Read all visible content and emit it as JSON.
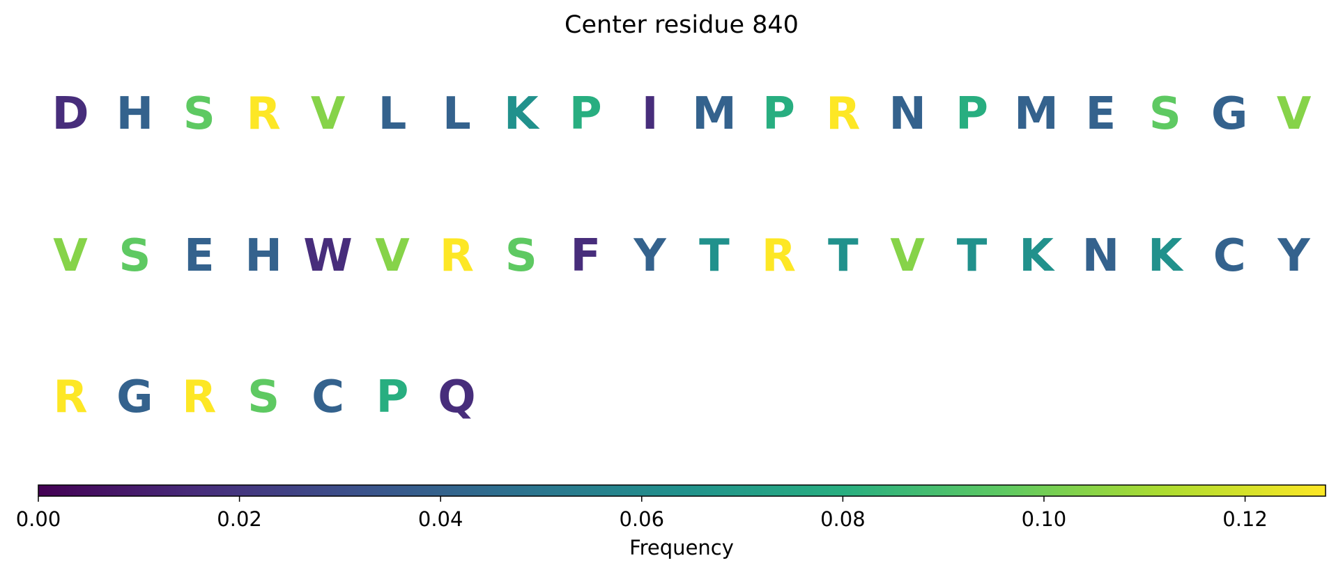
{
  "chart_data": {
    "type": "heatmap",
    "title": "Center residue 840",
    "colormap": "viridis",
    "grid": false,
    "rows": [
      [
        "D",
        "H",
        "S",
        "R",
        "V",
        "L",
        "L",
        "K",
        "P",
        "I",
        "M",
        "P",
        "R",
        "N",
        "P",
        "M",
        "E",
        "S",
        "G",
        "V"
      ],
      [
        "V",
        "S",
        "E",
        "H",
        "W",
        "V",
        "R",
        "S",
        "F",
        "Y",
        "T",
        "R",
        "T",
        "V",
        "T",
        "K",
        "N",
        "K",
        "C",
        "Y"
      ],
      [
        "R",
        "G",
        "R",
        "S",
        "C",
        "P",
        "Q"
      ]
    ],
    "residue_frequency": {
      "R": 0.128,
      "V": 0.104,
      "S": 0.096,
      "P": 0.08,
      "K": 0.064,
      "T": 0.064,
      "H": 0.04,
      "L": 0.04,
      "M": 0.04,
      "N": 0.04,
      "E": 0.04,
      "G": 0.04,
      "C": 0.04,
      "Y": 0.04,
      "D": 0.016,
      "I": 0.016,
      "W": 0.016,
      "F": 0.016,
      "Q": 0.016
    },
    "colorbar": {
      "label": "Frequency",
      "range": [
        0,
        0.128
      ],
      "ticks": [
        0.0,
        0.02,
        0.04,
        0.06,
        0.08,
        0.1,
        0.12
      ],
      "tick_labels": [
        "0.00",
        "0.02",
        "0.04",
        "0.06",
        "0.08",
        "0.10",
        "0.12"
      ],
      "placement": "bottom"
    }
  }
}
